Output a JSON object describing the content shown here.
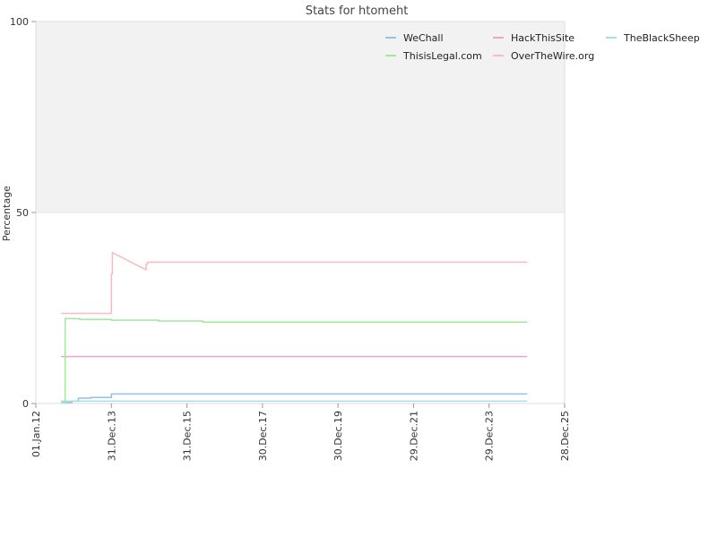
{
  "chart_data": {
    "type": "line",
    "title": "Stats for htomeht",
    "xlabel": "",
    "ylabel": "Percentage",
    "ylim": [
      0,
      100
    ],
    "y_ticks": [
      "0",
      "50",
      "100"
    ],
    "x_range": [
      "2012-01-01",
      "2025-12-28"
    ],
    "x_ticks": [
      {
        "date": "2012-01-01",
        "label": "01.Jan.12"
      },
      {
        "date": "2013-12-31",
        "label": "31.Dec.13"
      },
      {
        "date": "2015-12-31",
        "label": "31.Dec.15"
      },
      {
        "date": "2017-12-30",
        "label": "30.Dec.17"
      },
      {
        "date": "2019-12-30",
        "label": "30.Dec.19"
      },
      {
        "date": "2021-12-29",
        "label": "29.Dec.21"
      },
      {
        "date": "2023-12-29",
        "label": "29.Dec.23"
      },
      {
        "date": "2025-12-28",
        "label": "28.Dec.25"
      }
    ],
    "upper_band": [
      50,
      100
    ],
    "upper_band_color": "#f2f2f2",
    "grid": false,
    "legend_position": "top-right",
    "series": [
      {
        "name": "WeChall",
        "color": "#8fc2ee",
        "points": [
          [
            "2012-09-01",
            0.3
          ],
          [
            "2012-12-15",
            0.3
          ],
          [
            "2012-12-15",
            0.6
          ],
          [
            "2013-02-15",
            0.6
          ],
          [
            "2013-02-15",
            1.4
          ],
          [
            "2013-06-15",
            1.4
          ],
          [
            "2013-06-15",
            1.6
          ],
          [
            "2013-12-31",
            1.6
          ],
          [
            "2013-12-31",
            2.5
          ],
          [
            "2025-01-01",
            2.5
          ]
        ]
      },
      {
        "name": "HackThisSite",
        "color": "#e8a6c8",
        "points": [
          [
            "2012-09-01",
            12.3
          ],
          [
            "2025-01-01",
            12.3
          ]
        ]
      },
      {
        "name": "TheBlackSheep",
        "color": "#a8dfe0",
        "points": [
          [
            "2012-09-01",
            0.6
          ],
          [
            "2025-01-01",
            0.6
          ]
        ]
      },
      {
        "name": "ThisisLegal.com",
        "color": "#a3e6a0",
        "points": [
          [
            "2012-09-01",
            0.4
          ],
          [
            "2012-10-10",
            0.4
          ],
          [
            "2012-10-10",
            22.2
          ],
          [
            "2013-03-01",
            22.2
          ],
          [
            "2013-03-01",
            22.0
          ],
          [
            "2014-01-01",
            22.0
          ],
          [
            "2014-01-01",
            21.8
          ],
          [
            "2015-04-01",
            21.8
          ],
          [
            "2015-04-01",
            21.6
          ],
          [
            "2016-06-01",
            21.6
          ],
          [
            "2016-06-01",
            21.3
          ],
          [
            "2025-01-01",
            21.3
          ]
        ]
      },
      {
        "name": "OverTheWire.org",
        "color": "#f7bcbc",
        "points": [
          [
            "2012-09-01",
            23.6
          ],
          [
            "2013-12-31",
            23.6
          ],
          [
            "2013-12-31",
            34.0
          ],
          [
            "2014-01-10",
            34.0
          ],
          [
            "2014-01-10",
            39.5
          ],
          [
            "2014-12-01",
            35.0
          ],
          [
            "2014-12-01",
            36.5
          ],
          [
            "2014-12-15",
            36.5
          ],
          [
            "2014-12-15",
            37.0
          ],
          [
            "2025-01-01",
            37.0
          ]
        ]
      }
    ]
  }
}
